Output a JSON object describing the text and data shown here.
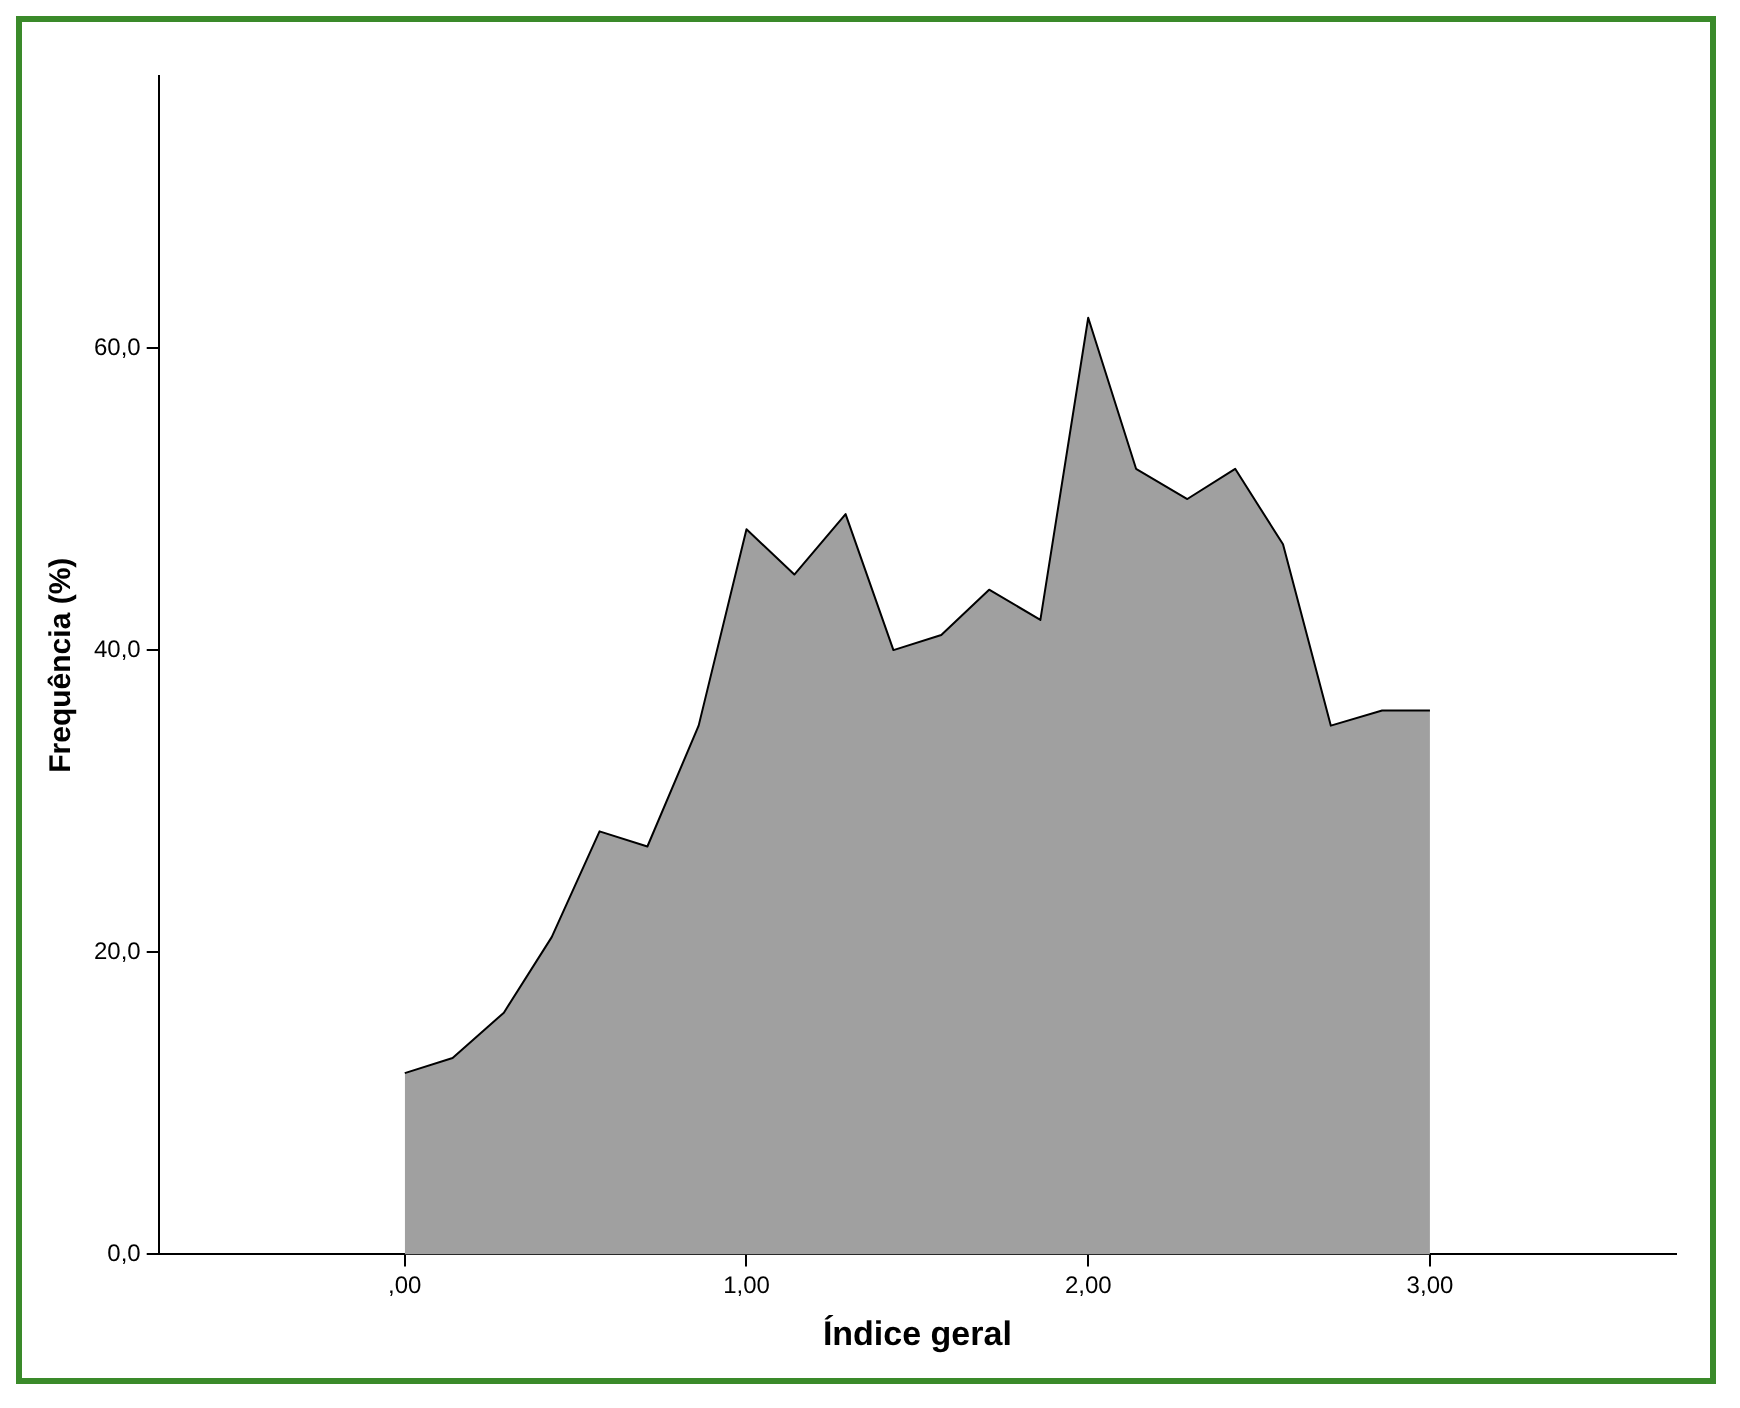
{
  "chart_data": {
    "type": "area",
    "xlabel": "Índice geral",
    "ylabel": "Frequência (%)",
    "x": [
      0,
      0.14,
      0.29,
      0.43,
      0.57,
      0.71,
      0.86,
      1,
      1.14,
      1.29,
      1.43,
      1.57,
      1.71,
      1.86,
      2,
      2.14,
      2.29,
      2.43,
      2.57,
      2.71,
      2.86,
      3
    ],
    "series": [
      {
        "color": "#a0a0a0",
        "values": [
          12,
          13,
          16,
          21,
          28,
          27,
          35,
          48,
          45,
          49,
          40,
          41,
          44,
          42,
          62,
          52,
          50,
          52,
          47,
          35,
          36,
          36
        ]
      }
    ],
    "xlim": [
      -0.72,
      3.72
    ],
    "xticks": [
      {
        "value": 0,
        "label": ",00"
      },
      {
        "value": 1,
        "label": "1,00"
      },
      {
        "value": 2,
        "label": "2,00"
      },
      {
        "value": 3,
        "label": "3,00"
      }
    ],
    "ylim": [
      0,
      78
    ],
    "yticks": [
      {
        "value": 0,
        "label": "0,0"
      },
      {
        "value": 20,
        "label": "20,0"
      },
      {
        "value": 40,
        "label": "40,0"
      },
      {
        "value": 60,
        "label": "60,0"
      }
    ],
    "grid": false,
    "legend": false,
    "marker": "none"
  }
}
